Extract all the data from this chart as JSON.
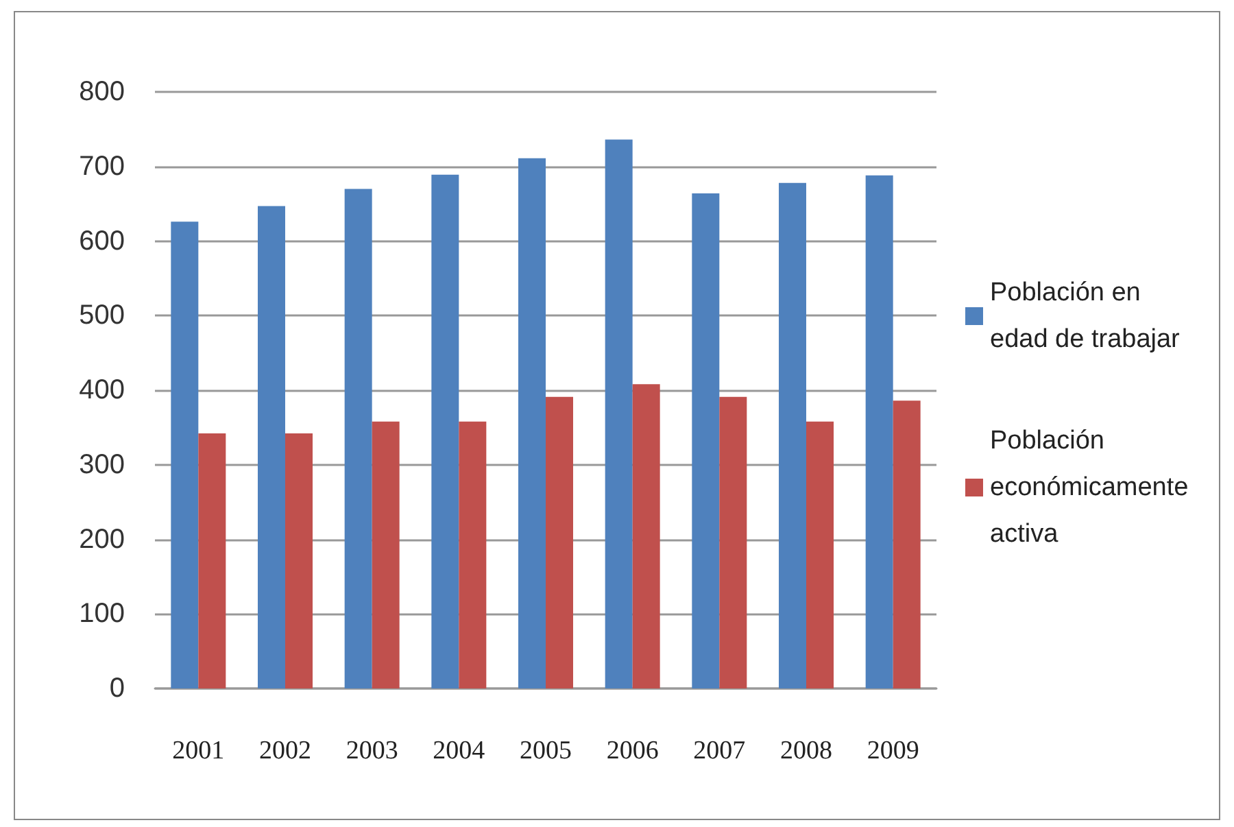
{
  "chart_data": {
    "type": "bar",
    "categories": [
      "2001",
      "2002",
      "2003",
      "2004",
      "2005",
      "2006",
      "2007",
      "2008",
      "2009"
    ],
    "series": [
      {
        "name": "Población en edad de trabajar",
        "color": "#4f81bd",
        "values": [
          626,
          647,
          670,
          689,
          711,
          736,
          664,
          678,
          688
        ]
      },
      {
        "name": "Población económicamente activa",
        "color": "#c0504d",
        "values": [
          342,
          342,
          358,
          358,
          391,
          408,
          391,
          358,
          386
        ]
      }
    ],
    "ylim": [
      0,
      800
    ],
    "yticks": [
      0,
      100,
      200,
      300,
      400,
      500,
      600,
      700,
      800
    ],
    "grid": "y",
    "legend": "right"
  }
}
